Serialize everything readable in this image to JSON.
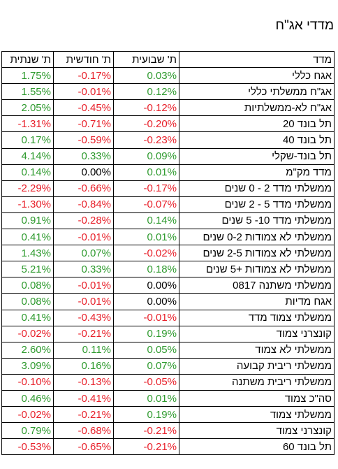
{
  "title": "מדדי אג\"ח",
  "headers": {
    "annual": "ת' שנתית",
    "monthly": "ת' חודשית",
    "weekly": "ת' שבועית",
    "index": "מדד"
  },
  "rows": [
    {
      "name": "אגח כללי",
      "weekly": "0.03%",
      "monthly": "-0.17%",
      "annual": "1.75%"
    },
    {
      "name": "אג\"ח ממשלתי כללי",
      "weekly": "0.12%",
      "monthly": "-0.01%",
      "annual": "1.55%"
    },
    {
      "name": "אג\"ח לא-ממשלתיות",
      "weekly": "-0.12%",
      "monthly": "-0.45%",
      "annual": "2.05%"
    },
    {
      "name": "תל בונד 20",
      "weekly": "-0.20%",
      "monthly": "-0.71%",
      "annual": "-1.31%"
    },
    {
      "name": "תל בונד 40",
      "weekly": "-0.23%",
      "monthly": "-0.59%",
      "annual": "0.17%"
    },
    {
      "name": "תל בונד-שקלי",
      "weekly": "0.09%",
      "monthly": "0.33%",
      "annual": "4.14%"
    },
    {
      "name": "מדד מק\"מ",
      "weekly": "0.01%",
      "monthly": "0.00%",
      "annual": "0.14%"
    },
    {
      "name": "ממשלתי מדד 2 - 0 שנים",
      "weekly": "-0.17%",
      "monthly": "-0.66%",
      "annual": "-2.29%"
    },
    {
      "name": "ממשלתי מדד 5 - 2 שנים",
      "weekly": "-0.07%",
      "monthly": "-0.84%",
      "annual": "-1.30%"
    },
    {
      "name": "ממשלתי מדד 10- 5 שנים",
      "weekly": "0.14%",
      "monthly": "-0.28%",
      "annual": "0.91%"
    },
    {
      "name": "ממשלתי לא צמודות 0-2 שנים",
      "weekly": "0.01%",
      "monthly": "-0.01%",
      "annual": "0.41%"
    },
    {
      "name": "ממשלתי לא צמודות 2-5 שנים",
      "weekly": "-0.02%",
      "monthly": "0.07%",
      "annual": "1.43%"
    },
    {
      "name": "ממשלתי לא צמודות +5 שנים",
      "weekly": "0.18%",
      "monthly": "0.33%",
      "annual": "5.21%"
    },
    {
      "name": "ממשלתי משתנה 0817",
      "weekly": "0.00%",
      "monthly": "-0.01%",
      "annual": "0.08%"
    },
    {
      "name": "אגח מדיות",
      "weekly": "0.00%",
      "monthly": "-0.01%",
      "annual": "0.08%"
    },
    {
      "name": "ממשלתי צמוד מדד",
      "weekly": "-0.01%",
      "monthly": "-0.43%",
      "annual": "0.41%"
    },
    {
      "name": "קונצרני צמוד",
      "weekly": "0.19%",
      "monthly": "-0.21%",
      "annual": "-0.02%"
    },
    {
      "name": "ממשלתי לא צמוד",
      "weekly": "0.05%",
      "monthly": "0.11%",
      "annual": "2.60%"
    },
    {
      "name": "ממשלתי ריבית קבועה",
      "weekly": "0.07%",
      "monthly": "0.16%",
      "annual": "3.09%"
    },
    {
      "name": "ממשלתי ריבית משתנה",
      "weekly": "-0.05%",
      "monthly": "-0.13%",
      "annual": "-0.10%"
    },
    {
      "name": "סה\"כ צמוד",
      "weekly": "0.01%",
      "monthly": "-0.41%",
      "annual": "0.46%"
    },
    {
      "name": "ממשלתי צמוד",
      "weekly": "0.19%",
      "monthly": "-0.21%",
      "annual": "-0.02%"
    },
    {
      "name": "קונצרני צמוד",
      "weekly": "-0.21%",
      "monthly": "-0.68%",
      "annual": "0.79%"
    },
    {
      "name": "תל בונד 60",
      "weekly": "-0.21%",
      "monthly": "-0.65%",
      "annual": "-0.53%"
    }
  ],
  "colors": {
    "positive": "#2e9a2e",
    "negative": "#e8202a",
    "zero": "#000000"
  }
}
